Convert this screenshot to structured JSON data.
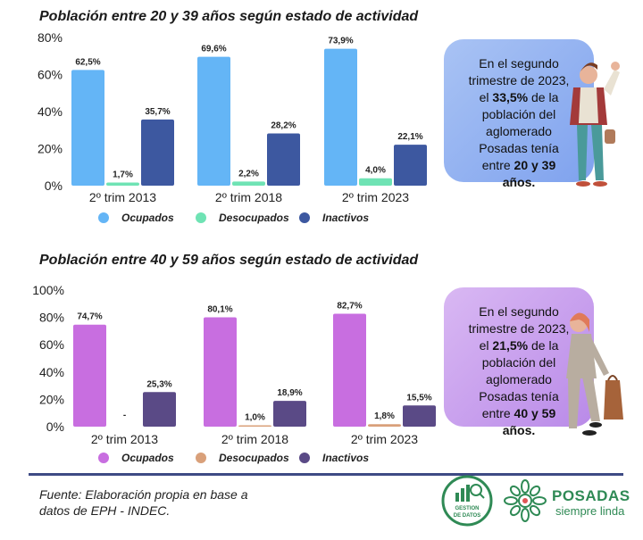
{
  "colors": {
    "blue_light": "#64b5f6",
    "teal": "#6fe3b4",
    "navy": "#3d58a0",
    "violet": "#c86ee0",
    "tan": "#d9a07a",
    "purple_dark": "#5a4a86",
    "callout1": "#8faef0",
    "callout2": "#c9a0ee",
    "footer_line": "#3e4a84",
    "logo_green": "#2f8a55"
  },
  "chart_data": [
    {
      "type": "bar",
      "title": "Población entre 20 y 39 años según estado de actividad",
      "categories": [
        "2º trim 2013",
        "2º trim 2018",
        "2º trim 2023"
      ],
      "ylim": [
        0,
        80
      ],
      "yticks": [
        "0%",
        "20%",
        "40%",
        "60%",
        "80%"
      ],
      "legend_position": "bottom",
      "series": [
        {
          "name": "Ocupados",
          "values": [
            62.5,
            69.6,
            73.9
          ],
          "labels": [
            "62,5%",
            "69,6%",
            "73,9%"
          ]
        },
        {
          "name": "Desocupados",
          "values": [
            1.7,
            2.2,
            4.0
          ],
          "labels": [
            "1,7%",
            "2,2%",
            "4,0%"
          ]
        },
        {
          "name": "Inactivos",
          "values": [
            35.7,
            28.2,
            22.1
          ],
          "labels": [
            "35,7%",
            "28,2%",
            "22,1%"
          ]
        }
      ]
    },
    {
      "type": "bar",
      "title": "Población entre 40 y 59 años según estado de actividad",
      "categories": [
        "2º trim 2013",
        "2º trim 2018",
        "2º trim 2023"
      ],
      "ylim": [
        0,
        100
      ],
      "yticks": [
        "0%",
        "20%",
        "40%",
        "60%",
        "80%",
        "100%"
      ],
      "legend_position": "bottom",
      "series": [
        {
          "name": "Ocupados",
          "values": [
            74.7,
            80.1,
            82.7
          ],
          "labels": [
            "74,7%",
            "80,1%",
            "82,7%"
          ]
        },
        {
          "name": "Desocupados",
          "values": [
            null,
            1.0,
            1.8
          ],
          "labels": [
            "-",
            "1,0%",
            "1,8%"
          ]
        },
        {
          "name": "Inactivos",
          "values": [
            25.3,
            18.9,
            15.5
          ],
          "labels": [
            "25,3%",
            "18,9%",
            "15,5%"
          ]
        }
      ]
    }
  ],
  "callouts": [
    {
      "line1": "En el segundo",
      "line2": "trimestre de 2023,",
      "line3_pre": "el ",
      "line3_bold": "33,5%",
      "line3_post": " de la",
      "line4": "población del",
      "line5": "aglomerado",
      "line6": "Posadas tenía",
      "line7_pre": "entre ",
      "line7_bold": "20 y 39",
      "line8_bold": "años."
    },
    {
      "line1": "En el segundo",
      "line2": "trimestre de 2023,",
      "line3_pre": "el ",
      "line3_bold": "21,5%",
      "line3_post": " de la",
      "line4": "población del",
      "line5": "aglomerado",
      "line6": "Posadas tenía",
      "line7_pre": "entre ",
      "line7_bold": "40 y 59",
      "line8_bold": "años."
    }
  ],
  "footer": {
    "source_line1": "Fuente: Elaboración propia en base a",
    "source_line2": "datos de EPH - INDEC.",
    "logo1_text": "GESTION DE DATOS",
    "logo2_title": "POSADAS",
    "logo2_subtitle": "siempre linda"
  }
}
